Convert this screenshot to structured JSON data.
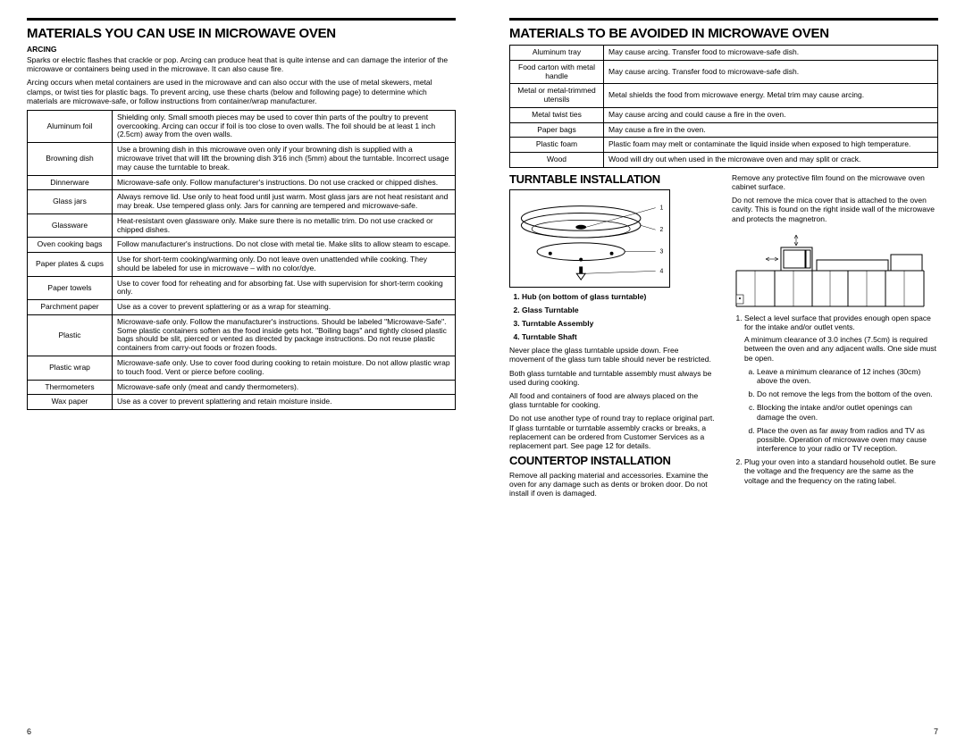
{
  "left": {
    "heading": "Materials You Can Use in Microwave Oven",
    "arcingLabel": "ARCING",
    "arcingPara1": "Sparks or electric flashes that crackle or pop. Arcing can produce heat that is quite intense and can damage the interior of the microwave or containers being used in the microwave. It can also cause fire.",
    "arcingPara2": "Arcing occurs when metal containers are used in the microwave and can also occur with the use of metal skewers, metal clamps, or twist ties for plastic bags. To prevent arcing, use these charts (below and following page) to determine which materials are microwave-safe, or follow instructions from container/wrap manufacturer.",
    "rows": [
      {
        "k": "Aluminum foil",
        "v": "Shielding only. Small smooth pieces may be used to cover thin parts of the poultry to prevent overcooking. Arcing can occur if foil is too close to oven walls. The foil should be at least 1 inch (2.5cm) away from the oven walls."
      },
      {
        "k": "Browning dish",
        "v": "Use a browning dish in this microwave oven only if your browning dish is supplied with a microwave trivet that will lift the browning dish 3⁄16 inch (5mm) about the turntable. Incorrect usage may cause the turntable to break."
      },
      {
        "k": "Dinnerware",
        "v": "Microwave-safe only. Follow manufacturer's instructions. Do not use cracked or chipped dishes."
      },
      {
        "k": "Glass jars",
        "v": "Always remove lid. Use only to heat food until just warm. Most glass jars are not heat resistant and may break. Use tempered glass only. Jars for canning are tempered and microwave-safe."
      },
      {
        "k": "Glassware",
        "v": "Heat-resistant oven glassware only. Make sure there is no metallic trim. Do not use cracked or chipped dishes."
      },
      {
        "k": "Oven cooking bags",
        "v": "Follow manufacturer's instructions. Do not close with metal tie. Make slits to allow steam to escape."
      },
      {
        "k": "Paper plates & cups",
        "v": "Use for short-term cooking/warming only. Do not leave oven unattended while cooking. They should be labeled for use in microwave – with no color/dye."
      },
      {
        "k": "Paper towels",
        "v": "Use to cover food for reheating and for absorbing fat. Use with supervision for short-term cooking only."
      },
      {
        "k": "Parchment paper",
        "v": "Use as a cover to prevent splattering or as a wrap for steaming."
      },
      {
        "k": "Plastic",
        "v": "Microwave-safe only. Follow the manufacturer's instructions. Should be labeled \"Microwave-Safe\". Some plastic containers soften as the food inside gets hot. \"Boiling bags\" and tightly closed plastic bags should be slit, pierced or vented as directed by package instructions. Do not reuse plastic containers from carry-out foods or frozen foods."
      },
      {
        "k": "Plastic wrap",
        "v": "Microwave-safe only. Use to cover food during cooking to retain moisture. Do not allow plastic wrap to touch food. Vent or pierce before cooling."
      },
      {
        "k": "Thermometers",
        "v": "Microwave-safe only (meat and candy thermometers)."
      },
      {
        "k": "Wax paper",
        "v": "Use as a cover to prevent splattering and retain moisture inside."
      }
    ],
    "pageNum": "6"
  },
  "right": {
    "heading": "Materials to be Avoided in Microwave Oven",
    "rows": [
      {
        "k": "Aluminum tray",
        "v": "May cause arcing. Transfer food to microwave-safe dish."
      },
      {
        "k": "Food carton with metal handle",
        "v": "May cause arcing. Transfer food to microwave-safe dish."
      },
      {
        "k": "Metal or metal-trimmed utensils",
        "v": "Metal shields the food from microwave energy. Metal trim may cause arcing."
      },
      {
        "k": "Metal twist ties",
        "v": "May cause arcing and could cause a fire in the oven."
      },
      {
        "k": "Paper bags",
        "v": "May cause a fire in the oven."
      },
      {
        "k": "Plastic foam",
        "v": "Plastic foam may melt or contaminate the liquid inside when exposed to high temperature."
      },
      {
        "k": "Wood",
        "v": "Wood will dry out when used in the microwave oven and may split or crack."
      }
    ],
    "turntableHeading": "Turntable Installation",
    "turntableList": [
      "Hub (on bottom of glass turntable)",
      "Glass Turntable",
      "Turntable Assembly",
      "Turntable Shaft"
    ],
    "turntableParas": [
      "Never place the glass turntable upside down. Free movement of the glass turn table should never be restricted.",
      "Both glass turntable and turntable assembly must always be used during cooking.",
      "All food and containers of food are always placed on the glass turntable for cooking.",
      "Do not use another type of round tray to replace original part. If glass turntable or turntable assembly cracks or breaks, a replacement can be ordered from Customer Services as a replacement part. See page 12 for details."
    ],
    "countertopHeading": "Countertop Installation",
    "countertopPara": "Remove all packing material and accessories. Examine the oven for any damage such as dents or broken door. Do not install if oven is damaged.",
    "rightColParas": [
      "Remove any protective film found on the microwave oven cabinet surface.",
      "Do not remove the mica cover that is attached to the oven cavity. This is found on the right inside wall of the microwave and protects the magnetron."
    ],
    "rightColStep1": "Select a level surface that provides enough open space for the intake and/or outlet vents.",
    "rightColStep1a": "A minimum clearance of 3.0 inches (7.5cm) is required between the oven and any adjacent walls. One side must be open.",
    "rightColSubA": "Leave a minimum clearance of 12 inches (30cm) above the oven.",
    "rightColSubB": "Do not remove the legs from the bottom of the oven.",
    "rightColSubC": "Blocking the intake and/or outlet openings can damage the oven.",
    "rightColSubD": "Place the oven as far away from radios and TV as possible. Operation of microwave oven may cause interference to your radio or TV reception.",
    "rightColStep2": "Plug your oven into a standard household outlet. Be sure the voltage and the frequency are the same as the voltage and the frequency on the rating label.",
    "pageNum": "7"
  },
  "style": {
    "bgColor": "#ffffff",
    "ruleColor": "#000000",
    "bodyFontSize": 8.5,
    "headingFontSize": 15
  }
}
